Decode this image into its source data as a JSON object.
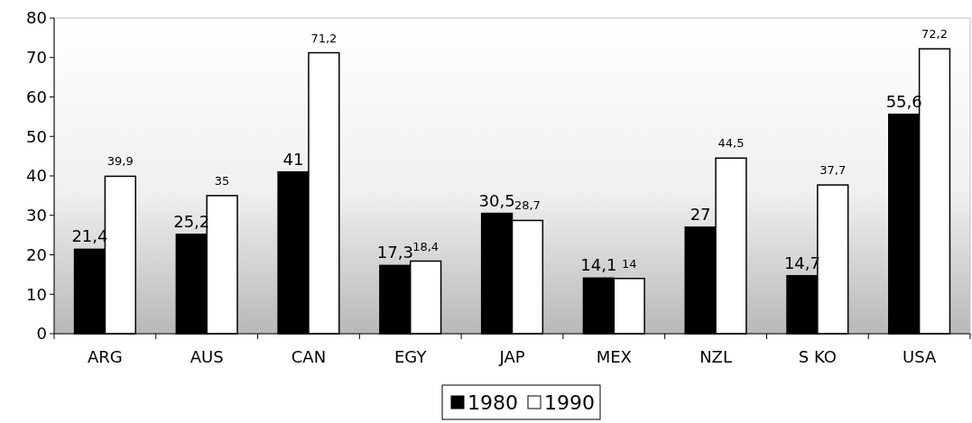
{
  "chart_data": {
    "type": "bar",
    "categories": [
      "ARG",
      "AUS",
      "CAN",
      "EGY",
      "JAP",
      "MEX",
      "NZL",
      "S KO",
      "USA"
    ],
    "series": [
      {
        "name": "1980",
        "color": "#000000",
        "values": [
          21.4,
          25.2,
          41,
          17.3,
          30.5,
          14.1,
          27,
          14.7,
          55.6
        ],
        "value_labels": [
          "21,4",
          "25,2",
          "41",
          "17,3",
          "30,5",
          "14,1",
          "27",
          "14,7",
          "55,6"
        ]
      },
      {
        "name": "1990",
        "color": "#ffffff",
        "values": [
          39.9,
          35,
          71.2,
          18.4,
          28.7,
          14,
          44.5,
          37.7,
          72.2
        ],
        "value_labels": [
          "39,9",
          "35",
          "71,2",
          "18,4",
          "28,7",
          "14",
          "44,5",
          "37,7",
          "72,2"
        ]
      }
    ],
    "ylim": [
      0,
      80
    ],
    "yticks": [
      0,
      10,
      20,
      30,
      40,
      50,
      60,
      70,
      80
    ],
    "grid": false,
    "legend": "bottom"
  }
}
